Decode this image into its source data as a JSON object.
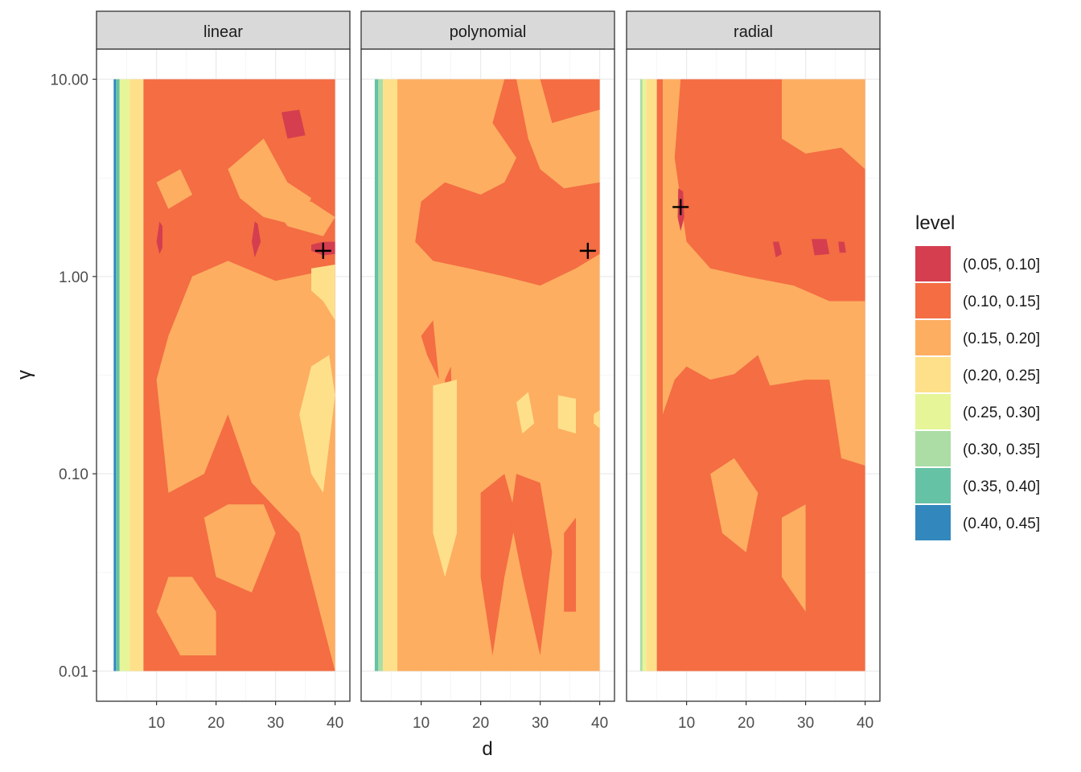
{
  "chart_data": {
    "type": "filled-contour (faceted)",
    "xlabel": "d",
    "ylabel": "γ",
    "x_range": [
      2,
      40
    ],
    "y_range_log10": [
      0.01,
      10.0
    ],
    "x_ticks": [
      10,
      20,
      30,
      40
    ],
    "y_ticks": [
      0.01,
      0.1,
      1.0,
      10.0
    ],
    "y_tick_labels": [
      "0.01",
      "0.10",
      "1.00",
      "10.00"
    ],
    "grid": true,
    "legend": {
      "title": "level",
      "position": "right",
      "entries": [
        {
          "label": "(0.05, 0.10]",
          "color": "#D53E4F"
        },
        {
          "label": "(0.10, 0.15]",
          "color": "#F46D43"
        },
        {
          "label": "(0.15, 0.20]",
          "color": "#FDAE61"
        },
        {
          "label": "(0.20, 0.25]",
          "color": "#FEE08B"
        },
        {
          "label": "(0.25, 0.30]",
          "color": "#E6F598"
        },
        {
          "label": "(0.30, 0.35]",
          "color": "#ABDDA4"
        },
        {
          "label": "(0.35, 0.40]",
          "color": "#66C2A5"
        },
        {
          "label": "(0.40, 0.45]",
          "color": "#3288BD"
        }
      ]
    },
    "facets": [
      {
        "label": "linear",
        "minimum_marker": {
          "d": 38,
          "gamma": 1.35
        },
        "vertical_bands": [
          {
            "x0": 2.8,
            "x1": 3.2,
            "level": 7
          },
          {
            "x0": 3.2,
            "x1": 3.8,
            "level": 6
          },
          {
            "x0": 3.8,
            "x1": 5.5,
            "level": 4
          },
          {
            "x0": 5.5,
            "x1": 7.8,
            "level": 3
          },
          {
            "x0": 7.8,
            "x1": 40,
            "level": 1
          }
        ],
        "regions": [
          {
            "level": 2,
            "pts": [
              [
                16,
                1.0
              ],
              [
                22,
                1.2
              ],
              [
                30,
                0.95
              ],
              [
                40,
                1.1
              ],
              [
                40,
                0.01
              ],
              [
                34,
                0.05
              ],
              [
                26,
                0.09
              ],
              [
                22,
                0.2
              ],
              [
                18,
                0.1
              ],
              [
                12,
                0.08
              ],
              [
                10,
                0.3
              ],
              [
                12,
                0.5
              ]
            ]
          },
          {
            "level": 2,
            "pts": [
              [
                18,
                0.06
              ],
              [
                20,
                0.03
              ],
              [
                26,
                0.025
              ],
              [
                30,
                0.05
              ],
              [
                28,
                0.07
              ],
              [
                22,
                0.07
              ]
            ]
          },
          {
            "level": 2,
            "pts": [
              [
                10,
                0.02
              ],
              [
                14,
                0.012
              ],
              [
                20,
                0.012
              ],
              [
                20,
                0.02
              ],
              [
                16,
                0.03
              ],
              [
                12,
                0.03
              ]
            ]
          },
          {
            "level": 2,
            "pts": [
              [
                22,
                3.5
              ],
              [
                28,
                5.0
              ],
              [
                32,
                3.0
              ],
              [
                36,
                2.5
              ],
              [
                34,
                1.8
              ],
              [
                28,
                2.0
              ],
              [
                24,
                2.5
              ]
            ]
          },
          {
            "level": 2,
            "pts": [
              [
                30,
                2.2
              ],
              [
                36,
                2.4
              ],
              [
                40,
                2.0
              ],
              [
                38,
                1.6
              ],
              [
                32,
                1.8
              ]
            ]
          },
          {
            "level": 2,
            "pts": [
              [
                10,
                3.0
              ],
              [
                14,
                3.5
              ],
              [
                16,
                2.6
              ],
              [
                12,
                2.2
              ]
            ]
          },
          {
            "level": 3,
            "pts": [
              [
                36,
                1.1
              ],
              [
                40,
                1.15
              ],
              [
                40,
                0.6
              ],
              [
                38,
                0.75
              ],
              [
                36,
                0.85
              ]
            ]
          },
          {
            "level": 3,
            "pts": [
              [
                36,
                0.35
              ],
              [
                39,
                0.4
              ],
              [
                40,
                0.25
              ],
              [
                38,
                0.08
              ],
              [
                36,
                0.1
              ],
              [
                34,
                0.2
              ]
            ]
          },
          {
            "level": 0,
            "pts": [
              [
                31,
                6.8
              ],
              [
                34,
                7.0
              ],
              [
                35,
                5.2
              ],
              [
                32,
                5.0
              ]
            ]
          },
          {
            "level": 0,
            "pts": [
              [
                36,
                1.45
              ],
              [
                38,
                1.5
              ],
              [
                40,
                1.5
              ],
              [
                40,
                1.3
              ],
              [
                38,
                1.28
              ],
              [
                36,
                1.35
              ]
            ]
          },
          {
            "level": 0,
            "pts": [
              [
                10.5,
                1.9
              ],
              [
                11,
                1.8
              ],
              [
                11,
                1.4
              ],
              [
                10.5,
                1.3
              ],
              [
                10,
                1.5
              ]
            ]
          },
          {
            "level": 0,
            "pts": [
              [
                26.5,
                1.9
              ],
              [
                27,
                1.85
              ],
              [
                27.5,
                1.5
              ],
              [
                26.5,
                1.25
              ],
              [
                26,
                1.5
              ]
            ]
          }
        ]
      },
      {
        "label": "polynomial",
        "minimum_marker": {
          "d": 38,
          "gamma": 1.35
        },
        "vertical_bands": [
          {
            "x0": 2.2,
            "x1": 2.8,
            "level": 6
          },
          {
            "x0": 2.8,
            "x1": 3.6,
            "level": 5
          },
          {
            "x0": 3.6,
            "x1": 6.0,
            "level": 3
          },
          {
            "x0": 6.0,
            "x1": 40,
            "level": 2
          }
        ],
        "regions": [
          {
            "level": 1,
            "pts": [
              [
                7,
                10
              ],
              [
                24,
                10
              ],
              [
                22,
                6
              ],
              [
                26,
                4
              ],
              [
                24,
                3
              ],
              [
                20,
                2.6
              ],
              [
                14,
                3.0
              ],
              [
                10,
                2.4
              ],
              [
                9,
                1.5
              ],
              [
                12,
                1.2
              ],
              [
                18,
                1.1
              ],
              [
                24,
                1.0
              ],
              [
                30,
                0.9
              ],
              [
                36,
                1.1
              ],
              [
                40,
                1.3
              ],
              [
                40,
                3.0
              ],
              [
                34,
                2.8
              ],
              [
                30,
                3.5
              ],
              [
                28,
                5.0
              ],
              [
                26,
                10
              ]
            ]
          },
          {
            "level": 1,
            "pts": [
              [
                30,
                10
              ],
              [
                40,
                10
              ],
              [
                40,
                7
              ],
              [
                36,
                6.5
              ],
              [
                32,
                6.0
              ]
            ]
          },
          {
            "level": 1,
            "pts": [
              [
                10,
                0.5
              ],
              [
                12,
                0.6
              ],
              [
                13,
                0.3
              ],
              [
                11,
                0.4
              ]
            ]
          },
          {
            "level": 1,
            "pts": [
              [
                14,
                0.3
              ],
              [
                15,
                0.35
              ],
              [
                15.5,
                0.12
              ],
              [
                14,
                0.15
              ]
            ]
          },
          {
            "level": 1,
            "pts": [
              [
                20,
                0.08
              ],
              [
                24,
                0.1
              ],
              [
                26,
                0.06
              ],
              [
                24,
                0.03
              ],
              [
                22,
                0.012
              ],
              [
                20,
                0.03
              ]
            ]
          },
          {
            "level": 1,
            "pts": [
              [
                26,
                0.1
              ],
              [
                30,
                0.09
              ],
              [
                32,
                0.04
              ],
              [
                30,
                0.012
              ],
              [
                27,
                0.03
              ],
              [
                25,
                0.06
              ]
            ]
          },
          {
            "level": 1,
            "pts": [
              [
                34,
                0.05
              ],
              [
                36,
                0.06
              ],
              [
                36,
                0.02
              ],
              [
                34,
                0.02
              ]
            ]
          },
          {
            "level": 3,
            "pts": [
              [
                12,
                0.28
              ],
              [
                16,
                0.3
              ],
              [
                16,
                0.05
              ],
              [
                14,
                0.03
              ],
              [
                12,
                0.05
              ]
            ]
          },
          {
            "level": 3,
            "pts": [
              [
                26,
                0.23
              ],
              [
                28,
                0.26
              ],
              [
                29,
                0.18
              ],
              [
                27,
                0.16
              ]
            ]
          },
          {
            "level": 3,
            "pts": [
              [
                33,
                0.25
              ],
              [
                36,
                0.24
              ],
              [
                36,
                0.16
              ],
              [
                33,
                0.17
              ]
            ]
          },
          {
            "level": 3,
            "pts": [
              [
                39,
                0.2
              ],
              [
                40,
                0.21
              ],
              [
                40,
                0.17
              ],
              [
                39,
                0.18
              ]
            ]
          }
        ]
      },
      {
        "label": "radial",
        "minimum_marker": {
          "d": 9,
          "gamma": 2.25
        },
        "vertical_bands": [
          {
            "x0": 2.2,
            "x1": 2.6,
            "level": 5
          },
          {
            "x0": 2.6,
            "x1": 3.2,
            "level": 4
          },
          {
            "x0": 3.2,
            "x1": 5.0,
            "level": 3
          },
          {
            "x0": 5.0,
            "x1": 40,
            "level": 1
          }
        ],
        "regions": [
          {
            "level": 2,
            "pts": [
              [
                6,
                10
              ],
              [
                9,
                10
              ],
              [
                8,
                4
              ],
              [
                10,
                1.5
              ],
              [
                14,
                1.1
              ],
              [
                20,
                1.0
              ],
              [
                28,
                0.9
              ],
              [
                34,
                0.75
              ],
              [
                40,
                0.75
              ],
              [
                40,
                0.11
              ],
              [
                36,
                0.12
              ],
              [
                34,
                0.3
              ],
              [
                30,
                0.3
              ],
              [
                24,
                0.28
              ],
              [
                22,
                0.4
              ],
              [
                18,
                0.32
              ],
              [
                14,
                0.3
              ],
              [
                10,
                0.35
              ],
              [
                8,
                0.3
              ],
              [
                6,
                0.2
              ]
            ]
          },
          {
            "level": 2,
            "pts": [
              [
                26,
                10
              ],
              [
                40,
                10
              ],
              [
                40,
                3.5
              ],
              [
                36,
                4.5
              ],
              [
                30,
                4.2
              ],
              [
                26,
                5.0
              ]
            ]
          },
          {
            "level": 2,
            "pts": [
              [
                14,
                0.1
              ],
              [
                18,
                0.12
              ],
              [
                22,
                0.08
              ],
              [
                20,
                0.04
              ],
              [
                16,
                0.05
              ]
            ]
          },
          {
            "level": 2,
            "pts": [
              [
                26,
                0.06
              ],
              [
                30,
                0.07
              ],
              [
                30,
                0.02
              ],
              [
                26,
                0.03
              ]
            ]
          },
          {
            "level": 0,
            "pts": [
              [
                8.6,
                2.8
              ],
              [
                9.4,
                2.7
              ],
              [
                9.6,
                2.0
              ],
              [
                9.0,
                1.7
              ],
              [
                8.5,
                2.0
              ]
            ]
          },
          {
            "level": 0,
            "pts": [
              [
                24.5,
                1.5
              ],
              [
                25.5,
                1.5
              ],
              [
                26,
                1.3
              ],
              [
                25,
                1.25
              ]
            ]
          },
          {
            "level": 0,
            "pts": [
              [
                31,
                1.55
              ],
              [
                33.5,
                1.55
              ],
              [
                34,
                1.3
              ],
              [
                31.5,
                1.28
              ]
            ]
          },
          {
            "level": 0,
            "pts": [
              [
                35.5,
                1.5
              ],
              [
                36.5,
                1.5
              ],
              [
                36.8,
                1.32
              ],
              [
                35.7,
                1.32
              ]
            ]
          }
        ]
      }
    ]
  }
}
